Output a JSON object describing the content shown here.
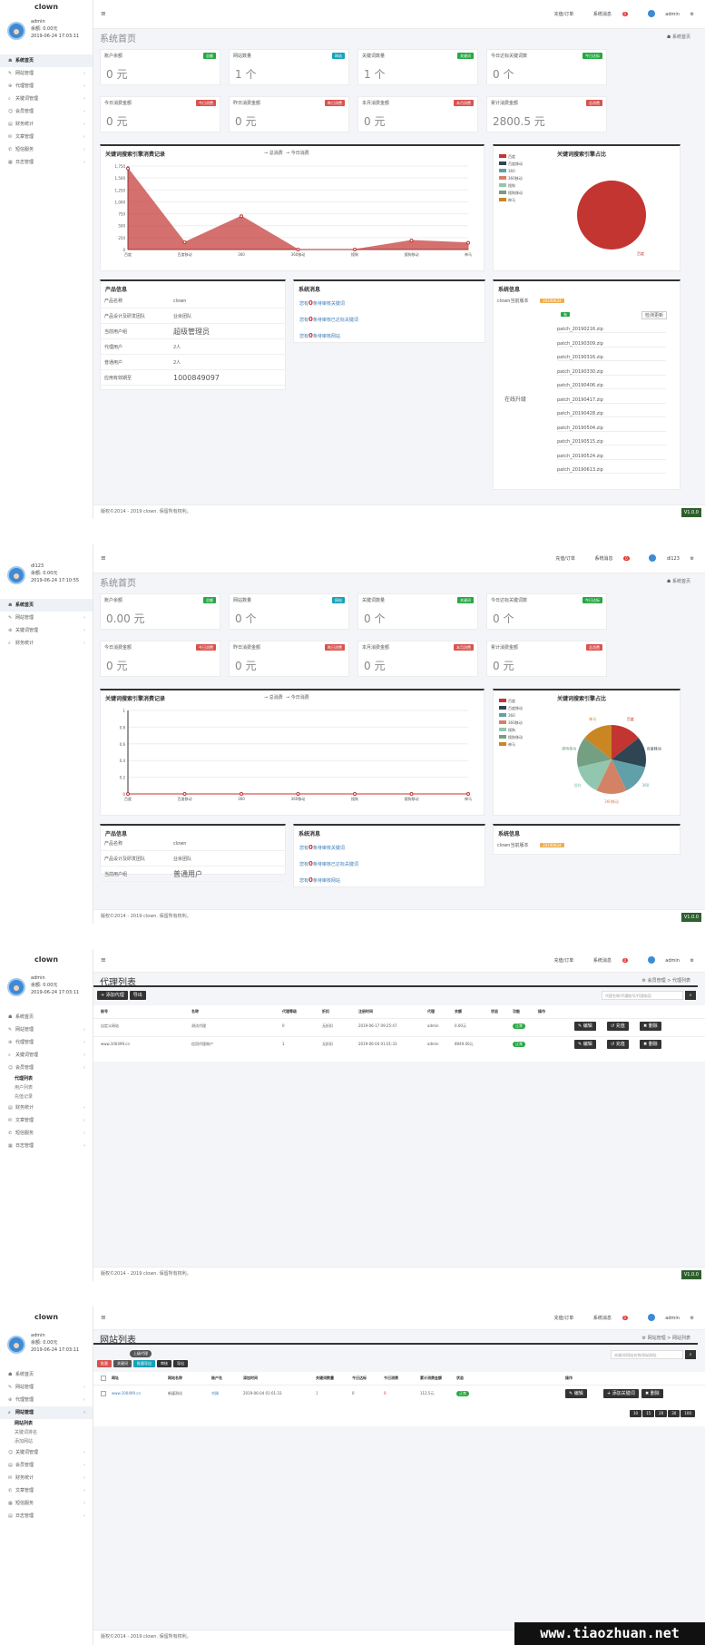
{
  "brand": "clown",
  "version": "V1.0.0",
  "footer_text": "版权©2014 - 2019 clown. 保留所有权利。",
  "watermark": "www.tiaozhuan.net",
  "common": {
    "menu_icon": "≡",
    "gear_icon": "⚙",
    "search_btn": "⌕"
  },
  "s1": {
    "user": {
      "name": "admin",
      "role": "余额: 0.00元",
      "time": "2019-06-24 17:03:11"
    },
    "nav": [
      "系统首页",
      "网站管理",
      "代理管理",
      "关键词管理",
      "会员管理",
      "财务统计",
      "文章管理",
      "短信服务",
      "日志管理"
    ],
    "top": {
      "item1": "充值/订单",
      "item2": "系统消息",
      "badge": "0",
      "user": "admin"
    },
    "title": "系统首页",
    "crumb": "☗ 系统首页",
    "stats": [
      {
        "label": "账户余额",
        "tag": "总额",
        "value": "0 元"
      },
      {
        "label": "网站数量",
        "tag": "网站",
        "value": "1 个"
      },
      {
        "label": "关键词数量",
        "tag": "关键词",
        "value": "1 个"
      },
      {
        "label": "今日达标关键词数",
        "tag": "今日达标",
        "value": "0 个"
      },
      {
        "label": "今日消费金额",
        "tag": "今日消费",
        "value": "0 元"
      },
      {
        "label": "昨日消费金额",
        "tag": "昨日消费",
        "value": "0 元"
      },
      {
        "label": "本月消费金额",
        "tag": "本月消费",
        "value": "0 元"
      },
      {
        "label": "累计消费金额",
        "tag": "总消费",
        "value": "2800.5 元"
      }
    ],
    "line_title": "关键词搜索引擎消费记录",
    "legend_a": "总消费",
    "legend_b": "今日消费",
    "pie_title": "关键词搜索引擎占比",
    "pie_legend": [
      "百度",
      "百度移动",
      "360",
      "360移动",
      "搜狗",
      "搜狗移动",
      "神马"
    ],
    "pie_label": "百度",
    "product_title": "产品信息",
    "product": [
      {
        "k": "产品名称",
        "v": "clown"
      },
      {
        "k": "产品设计及研发团队",
        "v": "业余团队"
      },
      {
        "k": "当前用户组",
        "v": "超级管理员"
      },
      {
        "k": "代理用户",
        "v": "2人"
      },
      {
        "k": "普通用户",
        "v": "2人"
      },
      {
        "k": "应用有效期至",
        "v": "1000849097"
      }
    ],
    "msg_title": "系统消息",
    "msgs": [
      {
        "a": "您有",
        "n": "0",
        "b": "条待审核关键词"
      },
      {
        "a": "您有",
        "n": "0",
        "b": "条待审核已达标关键词"
      },
      {
        "a": "您有",
        "n": "0",
        "b": "条待审核网站"
      }
    ],
    "sys_title": "系统信息",
    "sys_row": "clown当前版本",
    "sys_ver": "20190624",
    "sys_btn": "检测更新",
    "sys_new": "有",
    "sys_side": "在线升级",
    "patches": [
      "patch_20190216.zip",
      "patch_20190309.zip",
      "patch_20190316.zip",
      "patch_20190330.zip",
      "patch_20190406.zip",
      "patch_20190417.zip",
      "patch_20190428.zip",
      "patch_20190504.zip",
      "patch_20190515.zip",
      "patch_20190524.zip",
      "patch_20190613.zip"
    ]
  },
  "s2": {
    "user": {
      "name": "dl123",
      "role": "余额: 0.00元",
      "time": "2019-06-24 17:10:55"
    },
    "nav": [
      "系统首页",
      "网站管理",
      "关键词管理",
      "财务统计"
    ],
    "top": {
      "item1": "充值/订单",
      "item2": "系统消息",
      "badge": "0",
      "user": "dl123"
    },
    "title": "系统首页",
    "crumb": "☗ 系统首页",
    "stats": [
      {
        "label": "账户余额",
        "tag": "总额",
        "value": "0.00 元"
      },
      {
        "label": "网站数量",
        "tag": "网站",
        "value": "0 个"
      },
      {
        "label": "关键词数量",
        "tag": "关键词",
        "value": "0 个"
      },
      {
        "label": "今日达标关键词数",
        "tag": "今日达标",
        "value": "0 个"
      },
      {
        "label": "今日消费金额",
        "tag": "今日消费",
        "value": "0 元"
      },
      {
        "label": "昨日消费金额",
        "tag": "昨日消费",
        "value": "0 元"
      },
      {
        "label": "本月消费金额",
        "tag": "本月消费",
        "value": "0 元"
      },
      {
        "label": "累计消费金额",
        "tag": "总消费",
        "value": "0 元"
      }
    ],
    "product": [
      {
        "k": "产品名称",
        "v": "clown"
      },
      {
        "k": "产品设计及研发团队",
        "v": "业余团队"
      },
      {
        "k": "当前用户组",
        "v": "普通用户"
      }
    ],
    "sys_row": "clown当前版本",
    "sys_ver": "20190624"
  },
  "s3": {
    "user": {
      "name": "admin",
      "role": "余额: 0.00元",
      "time": "2019-06-24 17:03:11"
    },
    "nav": [
      "系统首页",
      "网站管理",
      "代理管理",
      "关键词管理",
      "会员管理",
      "财务统计",
      "文章管理",
      "短信服务",
      "日志管理"
    ],
    "subnav": [
      "代理列表",
      "用户列表",
      "充值记录"
    ],
    "title": "代理列表",
    "crumb": "⚙ 会员管理 > 代理列表",
    "btn_add": "+ 添加代理",
    "btn_export": "导出",
    "search_ph": "代理名称/代理账号/代理电话",
    "cols": [
      "账号",
      "名称",
      "代理等级",
      "折扣",
      "注册时间",
      "代理",
      "余额",
      "状态",
      "功能",
      "操作"
    ],
    "rows": [
      {
        "c0": "自定义网站",
        "c1": "测试代理",
        "c2": "0",
        "c3": "无折扣",
        "c4": "2019-06-17 09:25:47",
        "c5": "admin",
        "c6": "0.00元",
        "c7": "正常"
      },
      {
        "c0": "www.100499.cn",
        "c1": "信用代理商户",
        "c2": "1",
        "c3": "无折扣",
        "c4": "2019-06-04 01:01:33",
        "c5": "admin",
        "c6": "8949.00元",
        "c7": "正常"
      }
    ],
    "op": [
      "✎ 编辑",
      "↺ 充值",
      "✖ 删除"
    ]
  },
  "s4": {
    "user": {
      "name": "admin",
      "role": "余额: 0.00元",
      "time": "2019-06-24 17:03:11"
    },
    "nav": [
      "系统首页",
      "网站管理",
      "代理管理",
      "网站管理",
      "关键词管理",
      "会员管理",
      "财务统计",
      "文章管理",
      "短信服务",
      "日志管理"
    ],
    "subnav": [
      "网站列表",
      "关键词排名",
      "添加网站"
    ],
    "title": "网站列表",
    "crumb": "⚙ 网站管理 > 网站列表",
    "tip": "上级代理",
    "btns": [
      "批量",
      "关键词",
      "批量导出",
      "审核",
      "导出"
    ],
    "search_ph": "关键词/网站名称/网站网址",
    "cols": [
      "网址",
      "网站名称",
      "账户名",
      "添加时间",
      "关键词数量",
      "今日达标",
      "今日消费",
      "累计消费金额",
      "状态",
      "操作"
    ],
    "row": {
      "c0": "www.100499.cn",
      "c1": "新媒测试",
      "c2": "刘刚",
      "c3": "2019-06-04 01:01:33",
      "c4": "1",
      "c5": "0",
      "c6": "0",
      "c7": "112.5元",
      "c8": "正常"
    },
    "op": [
      "✎ 编辑",
      "+ 添加关键词",
      "✖ 删除"
    ],
    "pages": [
      "10",
      "15",
      "20",
      "30",
      "100"
    ]
  },
  "chart_data": [
    {
      "type": "area",
      "title": "关键词搜索引擎消费记录",
      "categories": [
        "百度",
        "百度移动",
        "360",
        "360移动",
        "搜狗",
        "搜狗移动",
        "神马"
      ],
      "series": [
        {
          "name": "总消费",
          "values": [
            1700,
            150,
            700,
            0,
            0,
            190,
            140
          ]
        }
      ],
      "ylim": [
        0,
        1750
      ],
      "yticks": [
        "0",
        "250",
        "500",
        "750",
        "1,000",
        "1,250",
        "1,500",
        "1,750"
      ]
    },
    {
      "type": "pie",
      "title": "关键词搜索引擎占比",
      "categories": [
        "百度",
        "百度移动",
        "360",
        "360移动",
        "搜狗",
        "搜狗移动",
        "神马"
      ],
      "values": [
        100,
        0,
        0,
        0,
        0,
        0,
        0
      ]
    },
    {
      "type": "line",
      "title": "关键词搜索引擎消费记录",
      "categories": [
        "百度",
        "百度移动",
        "360",
        "360移动",
        "搜狗",
        "搜狗移动",
        "神马"
      ],
      "series": [
        {
          "name": "总消费",
          "values": [
            0,
            0,
            0,
            0,
            0,
            0,
            0
          ]
        }
      ],
      "ylim": [
        0,
        1
      ],
      "yticks": [
        "0",
        "0.2",
        "0.4",
        "0.6",
        "0.8",
        "1"
      ]
    },
    {
      "type": "pie",
      "title": "关键词搜索引擎占比",
      "categories": [
        "百度",
        "百度移动",
        "360",
        "360移动",
        "搜狗",
        "搜狗移动",
        "神马"
      ],
      "values": [
        1,
        1,
        1,
        1,
        1,
        1,
        1
      ]
    }
  ],
  "colors": {
    "baidu": "#c23531",
    "baidu_m": "#2f4554",
    "s360": "#61a0a8",
    "s360_m": "#d48265",
    "sogou": "#91c7ae",
    "sogou_m": "#749f83",
    "shenma": "#ca8622"
  }
}
